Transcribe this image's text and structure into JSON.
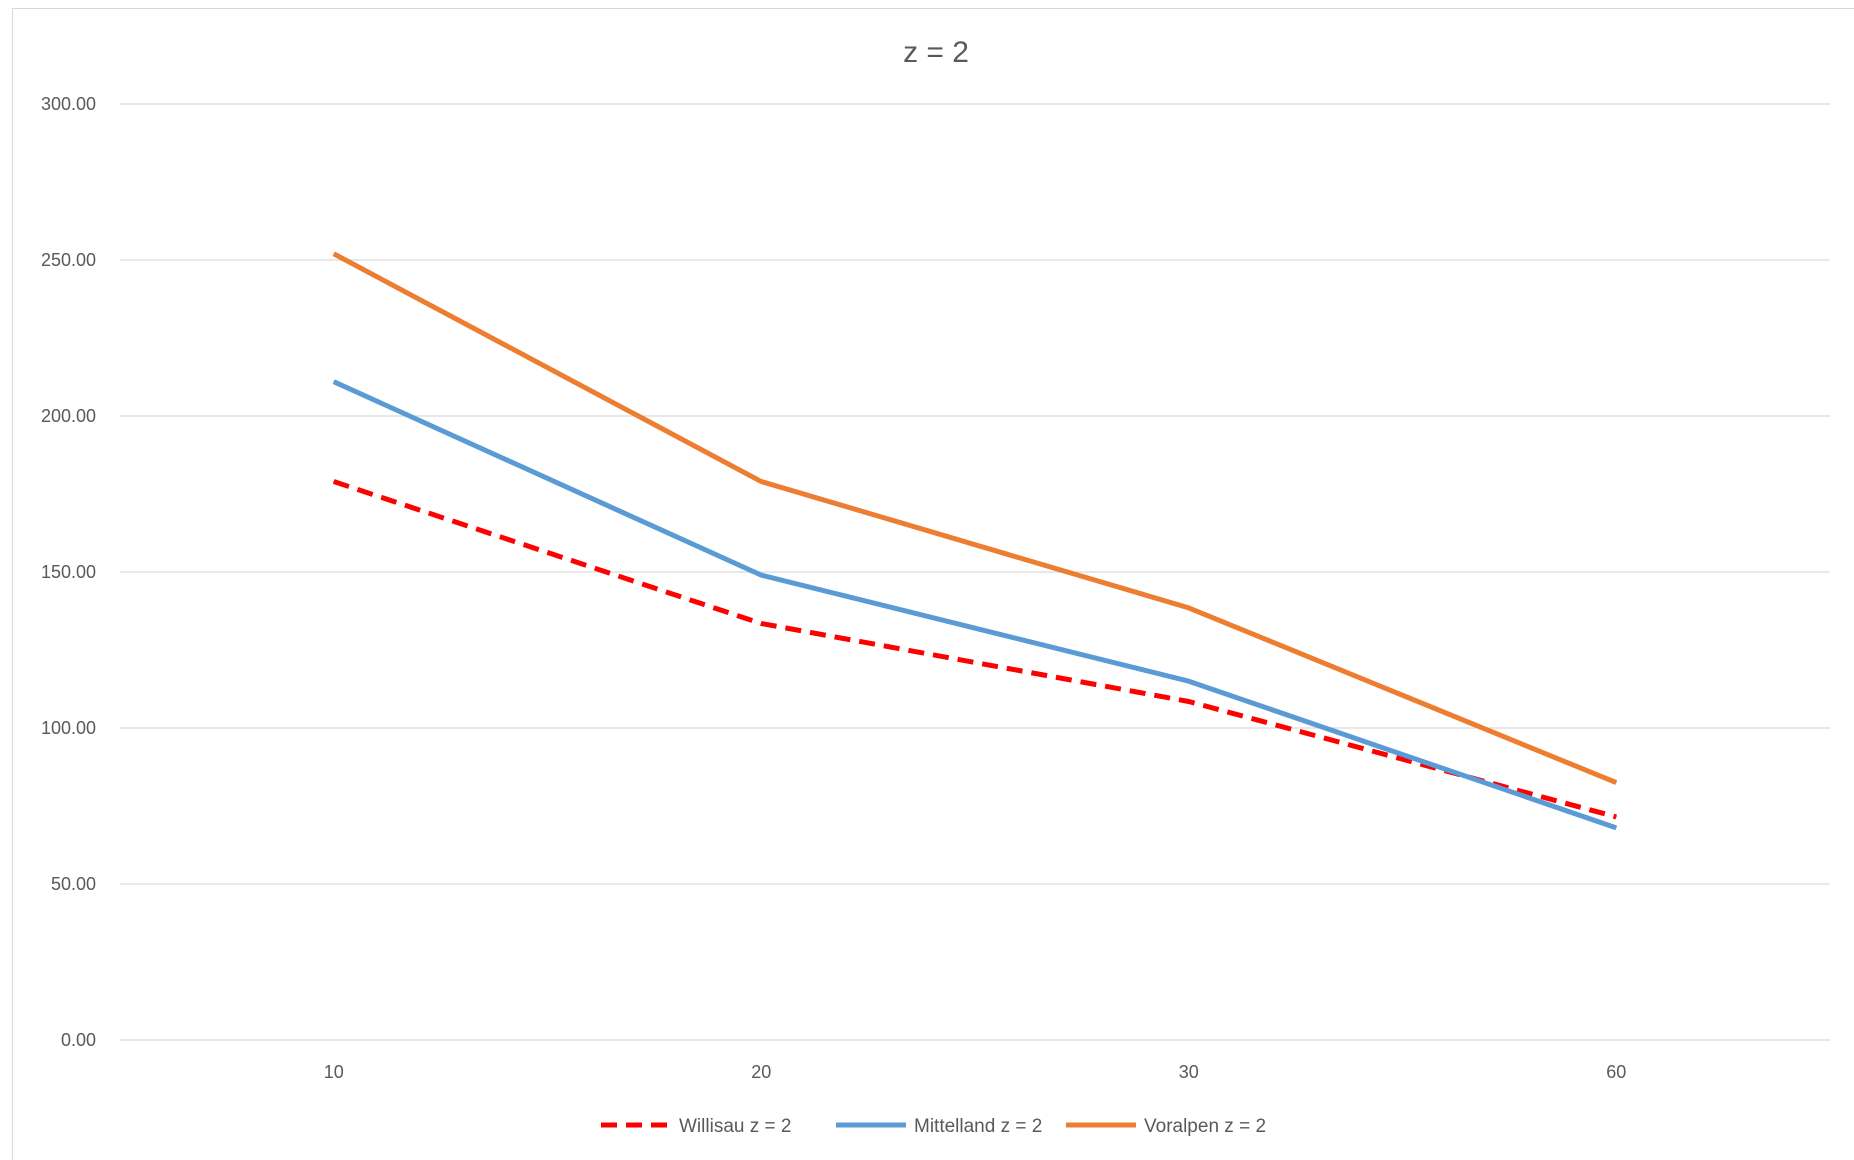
{
  "chart_data": {
    "type": "line",
    "title": "z = 2",
    "xlabel": "",
    "ylabel": "",
    "categories": [
      "10",
      "20",
      "30",
      "60"
    ],
    "ylim": [
      0,
      300
    ],
    "yticks": [
      "0.00",
      "50.00",
      "100.00",
      "150.00",
      "200.00",
      "250.00",
      "300.00"
    ],
    "grid": "horizontal",
    "legend_position": "bottom",
    "series": [
      {
        "name": "Willisau z = 2",
        "values": [
          179,
          133.5,
          108.5,
          71.5
        ],
        "color": "#ff0000",
        "dash": "dashed"
      },
      {
        "name": "Mittelland z = 2",
        "values": [
          211,
          149,
          115,
          68
        ],
        "color": "#5b9bd5",
        "dash": "solid"
      },
      {
        "name": "Voralpen z = 2",
        "values": [
          252,
          179,
          138.5,
          82.5
        ],
        "color": "#ed7d31",
        "dash": "solid"
      }
    ]
  }
}
